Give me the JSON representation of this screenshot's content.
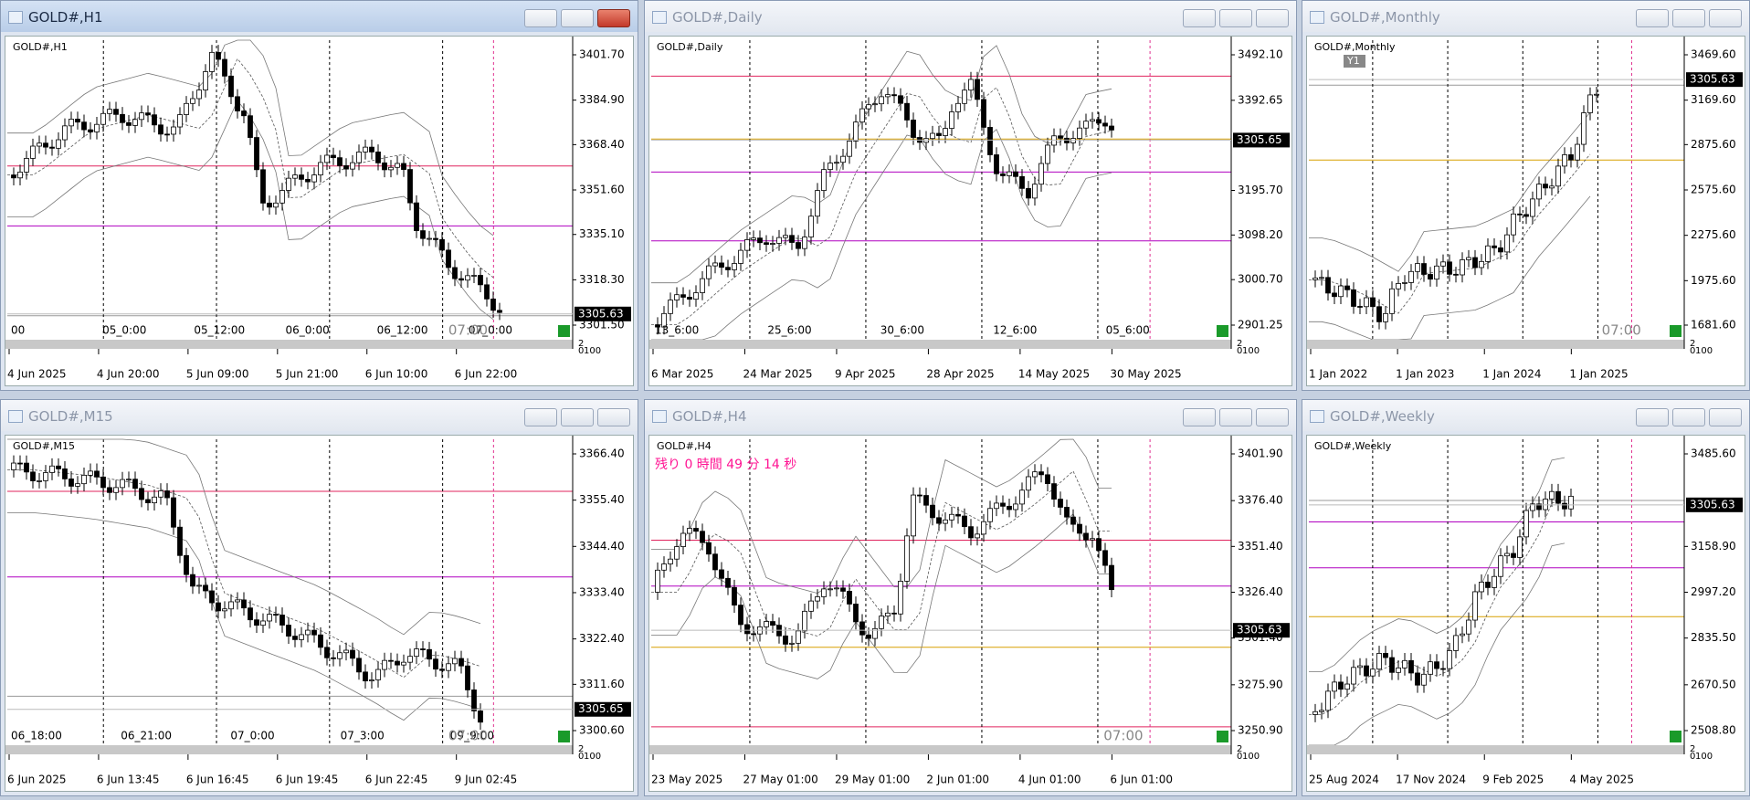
{
  "windows": [
    {
      "title": "GOLD#,H1",
      "chart_label": "GOLD#,H1",
      "price_scale": [
        "3401.70",
        "3384.90",
        "3368.40",
        "3351.60",
        "3335.10",
        "3318.30",
        "3301.50"
      ],
      "current_price": "3305.63",
      "time_scale": [
        "4 Jun 2025",
        "4 Jun 20:00",
        "5 Jun 09:00",
        "5 Jun 21:00",
        "6 Jun 10:00",
        "6 Jun 22:00"
      ],
      "grid_labels": [
        "00",
        "05_0:00",
        "05_12:00",
        "06_0:00",
        "06_12:00",
        "07_0:00"
      ],
      "session_label": "07:00",
      "indicator_scale": [
        "2",
        "0",
        "100"
      ]
    },
    {
      "title": "GOLD#,Daily",
      "chart_label": "GOLD#,Daily",
      "price_scale": [
        "3492.10",
        "3392.65",
        "3195.70",
        "3098.20",
        "3000.70",
        "2901.25"
      ],
      "current_price": "3305.65",
      "time_scale": [
        "6 Mar 2025",
        "24 Mar 2025",
        "9 Apr 2025",
        "28 Apr 2025",
        "14 May 2025",
        "30 May 2025"
      ],
      "grid_labels": [
        "13_6:00",
        "25_6:00",
        "30_6:00",
        "12_6:00",
        "05_6:00"
      ],
      "indicator_scale": [
        "2",
        "0",
        "100"
      ]
    },
    {
      "title": "GOLD#,Monthly",
      "chart_label": "GOLD#,Monthly",
      "badge": "Y1",
      "price_scale": [
        "3469.60",
        "3169.60",
        "2875.60",
        "2575.60",
        "2275.60",
        "1975.60",
        "1681.60"
      ],
      "current_price": "3305.63",
      "time_scale": [
        "1 Jan 2022",
        "1 Jan 2023",
        "1 Jan 2024",
        "1 Jan 2025"
      ],
      "session_label": "07:00",
      "indicator_scale": [
        "2",
        "0",
        "100"
      ]
    },
    {
      "title": "GOLD#,M15",
      "chart_label": "GOLD#,M15",
      "price_scale": [
        "3366.40",
        "3355.40",
        "3344.40",
        "3333.40",
        "3322.40",
        "3311.60",
        "3300.60"
      ],
      "current_price": "3305.65",
      "time_scale": [
        "6 Jun 2025",
        "6 Jun 13:45",
        "6 Jun 16:45",
        "6 Jun 19:45",
        "6 Jun 22:45",
        "9 Jun 02:45"
      ],
      "grid_labels": [
        "06_18:00",
        "06_21:00",
        "07_0:00",
        "07_3:00",
        "09_9:00"
      ],
      "session_label": "07:00",
      "indicator_scale": [
        "2",
        "0",
        "100"
      ]
    },
    {
      "title": "GOLD#,H4",
      "chart_label": "GOLD#,H4",
      "countdown": "残り 0 時間 49 分 14 秒",
      "price_scale": [
        "3401.90",
        "3376.40",
        "3351.40",
        "3326.40",
        "3301.40",
        "3275.90",
        "3250.90"
      ],
      "current_price": "3305.63",
      "time_scale": [
        "23 May 2025",
        "27 May 01:00",
        "29 May 01:00",
        "2 Jun 01:00",
        "4 Jun 01:00",
        "6 Jun 01:00"
      ],
      "session_label": "07:00",
      "indicator_scale": [
        "2",
        "0",
        "100"
      ]
    },
    {
      "title": "GOLD#,Weekly",
      "chart_label": "GOLD#,Weekly",
      "price_scale": [
        "3485.60",
        "3158.90",
        "2997.20",
        "2835.50",
        "2670.50",
        "2508.80"
      ],
      "current_price": "3305.63",
      "time_scale": [
        "25 Aug 2024",
        "17 Nov 2024",
        "9 Feb 2025",
        "4 May 2025"
      ],
      "indicator_scale": [
        "2",
        "0",
        "100"
      ]
    }
  ]
}
